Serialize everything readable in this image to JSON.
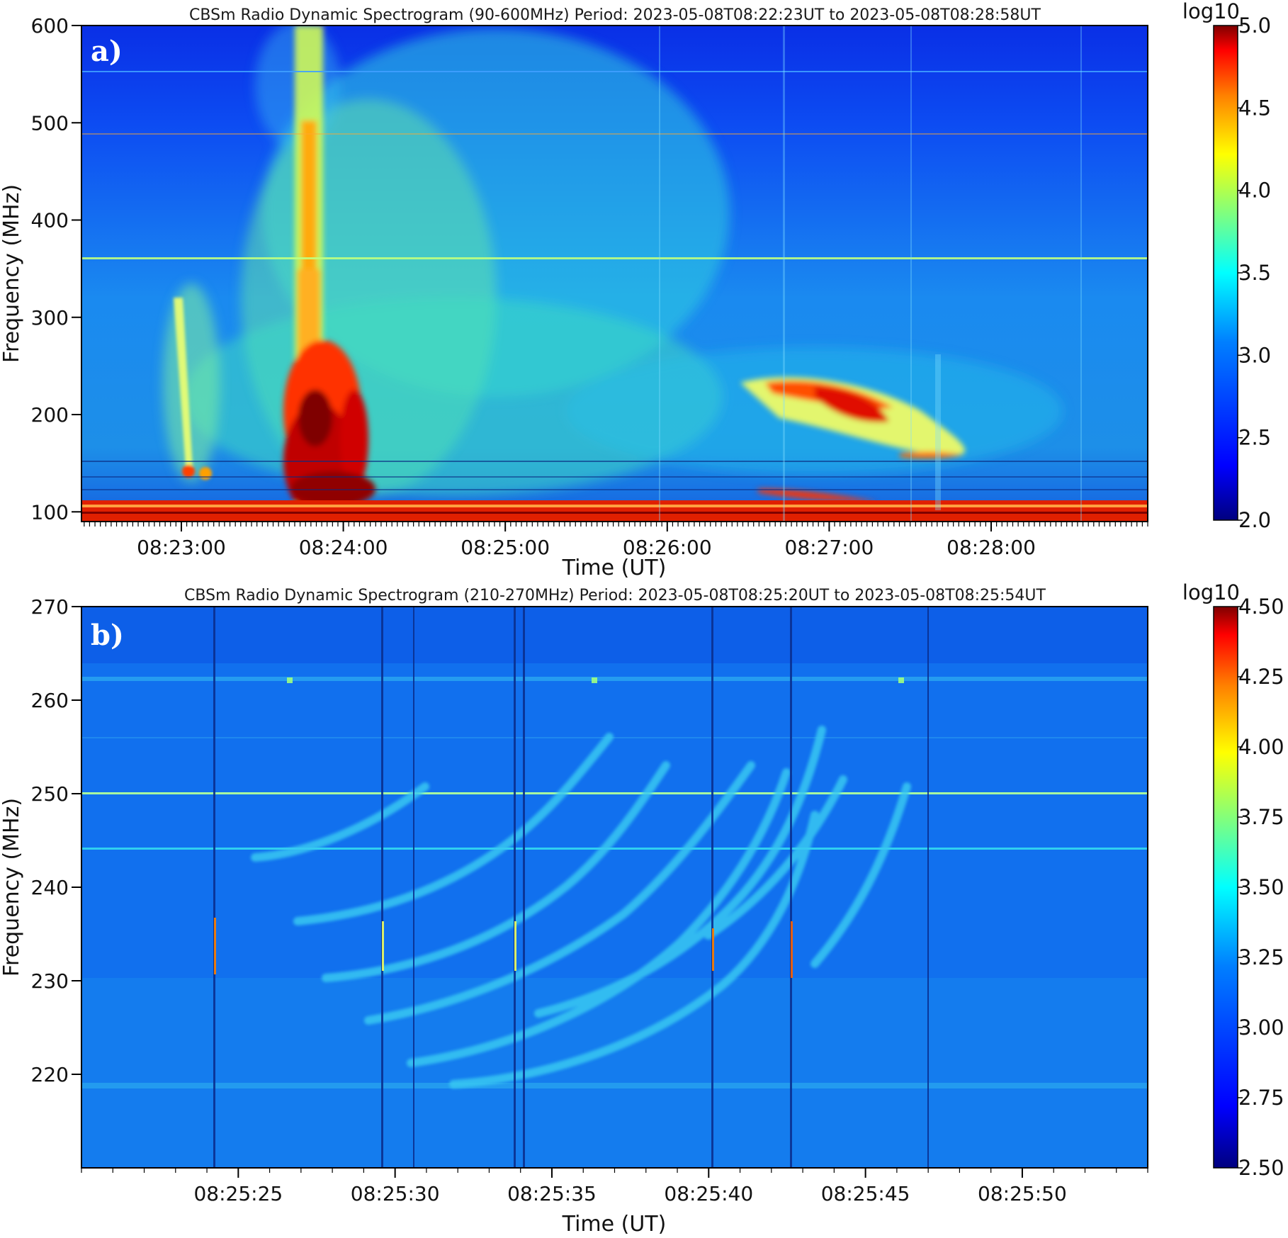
{
  "chart_data": [
    {
      "type": "heatmap",
      "panel_label": "a)",
      "title": "CBSm Radio Dynamic Spectrogram (90-600MHz) Period: 2023-05-08T08:22:23UT to 2023-05-08T08:28:58UT",
      "xlabel": "Time (UT)",
      "ylabel": "Frequency (MHz)",
      "xlim": [
        "08:22:23",
        "08:28:58"
      ],
      "ylim": [
        90,
        600
      ],
      "x_ticks": [
        "08:23:00",
        "08:24:00",
        "08:25:00",
        "08:26:00",
        "08:27:00",
        "08:28:00"
      ],
      "y_ticks": [
        100,
        200,
        300,
        400,
        500,
        600
      ],
      "colorbar": {
        "label": "log10",
        "range": [
          2.0,
          5.0
        ],
        "ticks": [
          "2.0",
          "2.5",
          "3.0",
          "3.5",
          "4.0",
          "4.5",
          "5.0"
        ]
      },
      "colormap": [
        "#00007f",
        "#0000ff",
        "#007fff",
        "#00ffff",
        "#7fff7f",
        "#ffff00",
        "#ff7f00",
        "#ff0000",
        "#7f0000"
      ]
    },
    {
      "type": "heatmap",
      "panel_label": "b)",
      "title": "CBSm Radio Dynamic Spectrogram (210-270MHz) Period: 2023-05-08T08:25:20UT to 2023-05-08T08:25:54UT",
      "xlabel": "Time (UT)",
      "ylabel": "Frequency (MHz)",
      "xlim": [
        "08:25:20",
        "08:25:54"
      ],
      "ylim": [
        210,
        270
      ],
      "x_ticks": [
        "08:25:25",
        "08:25:30",
        "08:25:35",
        "08:25:40",
        "08:25:45",
        "08:25:50"
      ],
      "y_ticks": [
        220,
        230,
        240,
        250,
        260,
        270
      ],
      "colorbar": {
        "label": "log10",
        "range": [
          2.5,
          4.5
        ],
        "ticks": [
          "2.50",
          "2.75",
          "3.00",
          "3.25",
          "3.50",
          "3.75",
          "4.00",
          "4.25",
          "4.50"
        ]
      },
      "colormap": [
        "#00007f",
        "#0000ff",
        "#007fff",
        "#00ffff",
        "#7fff7f",
        "#ffff00",
        "#ff7f00",
        "#ff0000",
        "#7f0000"
      ]
    }
  ]
}
